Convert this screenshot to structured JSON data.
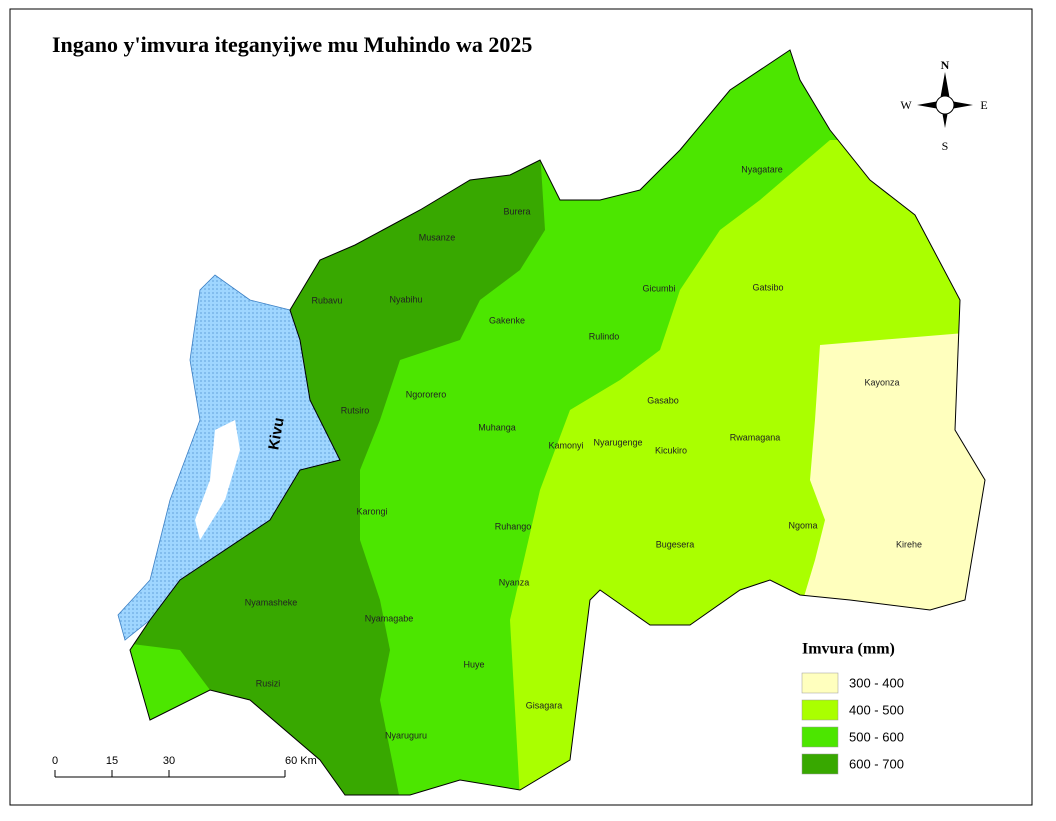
{
  "title": "Ingano y'imvura iteganyijwe mu Muhindo wa 2025",
  "lake": "Kivu",
  "districts": [
    "Nyagatare",
    "Burera",
    "Musanze",
    "Gatsibo",
    "Gicumbi",
    "Rubavu",
    "Nyabihu",
    "Gakenke",
    "Rulindo",
    "Kayonza",
    "Ngororero",
    "Gasabo",
    "Rutsiro",
    "Muhanga",
    "Rwamagana",
    "Kamonyi",
    "Nyarugenge",
    "Kicukiro",
    "Karongi",
    "Ruhango",
    "Ngoma",
    "Bugesera",
    "Kirehe",
    "Nyanza",
    "Nyamasheke",
    "Nyamagabe",
    "Huye",
    "Rusizi",
    "Gisagara",
    "Nyaruguru"
  ],
  "legend": {
    "title": "Imvura (mm)",
    "items": [
      {
        "label": "300 - 400",
        "color": "#ffffbe"
      },
      {
        "label": "400 - 500",
        "color": "#aaff00"
      },
      {
        "label": "500 - 600",
        "color": "#4ce600"
      },
      {
        "label": "600 - 700",
        "color": "#38a800"
      }
    ]
  },
  "scale_bar": [
    "0",
    "15",
    "30",
    "60 Km"
  ],
  "compass": {
    "n": "N",
    "s": "S",
    "e": "E",
    "w": "W"
  }
}
